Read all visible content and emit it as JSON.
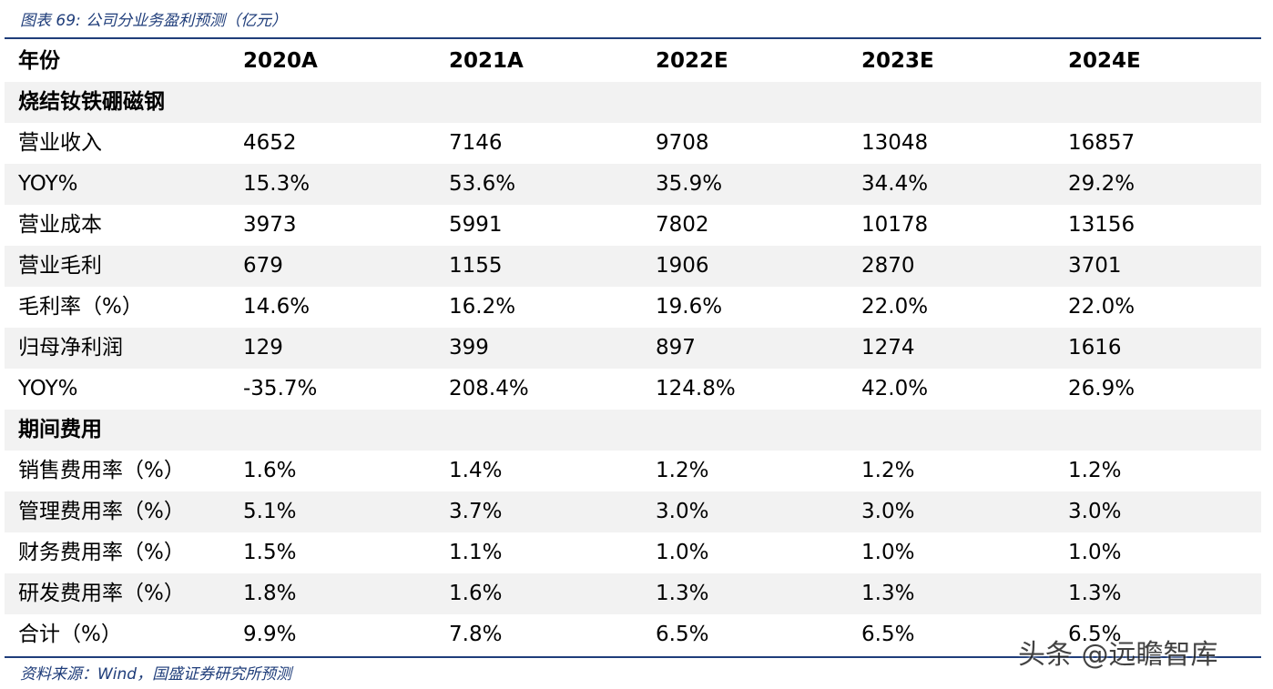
{
  "header": {
    "title": "图表 69: 公司分业务盈利预测（亿元）"
  },
  "table": {
    "columns": [
      "年份",
      "2020A",
      "2021A",
      "2022E",
      "2023E",
      "2024E"
    ],
    "rows": [
      [
        "烧结钕铁硼磁钢"
      ],
      [
        "营业收入",
        "4652",
        "7146",
        "9708",
        "13048",
        "16857"
      ],
      [
        "YOY%",
        "15.3%",
        "53.6%",
        "35.9%",
        "34.4%",
        "29.2%"
      ],
      [
        "营业成本",
        "3973",
        "5991",
        "7802",
        "10178",
        "13156"
      ],
      [
        "营业毛利",
        "679",
        "1155",
        "1906",
        "2870",
        "3701"
      ],
      [
        "毛利率（%）",
        "14.6%",
        "16.2%",
        "19.6%",
        "22.0%",
        "22.0%"
      ],
      [
        "归母净利润",
        "129",
        "399",
        "897",
        "1274",
        "1616"
      ],
      [
        "YOY%",
        "-35.7%",
        "208.4%",
        "124.8%",
        "42.0%",
        "26.9%"
      ],
      [
        "期间费用"
      ],
      [
        "销售费用率（%）",
        "1.6%",
        "1.4%",
        "1.2%",
        "1.2%",
        "1.2%"
      ],
      [
        "管理费用率（%）",
        "5.1%",
        "3.7%",
        "3.0%",
        "3.0%",
        "3.0%"
      ],
      [
        "财务费用率（%）",
        "1.5%",
        "1.1%",
        "1.0%",
        "1.0%",
        "1.0%"
      ],
      [
        "研发费用率（%）",
        "1.8%",
        "1.6%",
        "1.3%",
        "1.3%",
        "1.3%"
      ],
      [
        "合计（%）",
        "9.9%",
        "7.8%",
        "6.5%",
        "6.5%",
        "6.5%"
      ]
    ]
  },
  "source": "资料来源：Wind，国盛证券研究所预测",
  "watermark": "头条 @远瞻智库"
}
